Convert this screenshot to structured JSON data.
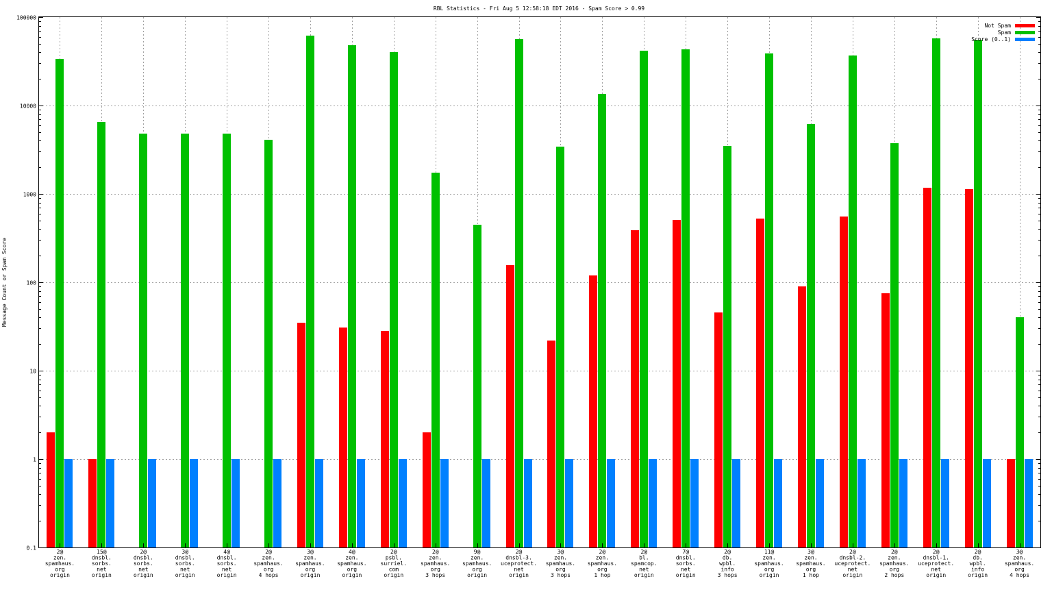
{
  "chart_data": {
    "type": "bar",
    "title": "RBL Statistics - Fri Aug  5 12:58:18 EDT 2016 - Spam Score > 0.99",
    "ylabel": "Message Count or Spam Score",
    "xlabel": "",
    "yscale": "log",
    "ylim": [
      0.1,
      100000
    ],
    "yticks": [
      "0.1",
      "1",
      "10",
      "100",
      "1000",
      "10000",
      "100000"
    ],
    "grid": true,
    "legend_position": "top-right",
    "categories": [
      [
        "2@",
        "zen.",
        "spamhaus.",
        "org",
        "origin"
      ],
      [
        "15@",
        "dnsbl.",
        "sorbs.",
        "net",
        "origin"
      ],
      [
        "2@",
        "dnsbl.",
        "sorbs.",
        "net",
        "origin"
      ],
      [
        "3@",
        "dnsbl.",
        "sorbs.",
        "net",
        "origin"
      ],
      [
        "4@",
        "dnsbl.",
        "sorbs.",
        "net",
        "origin"
      ],
      [
        "2@",
        "zen.",
        "spamhaus.",
        "org",
        "4 hops"
      ],
      [
        "3@",
        "zen.",
        "spamhaus.",
        "org",
        "origin"
      ],
      [
        "4@",
        "zen.",
        "spamhaus.",
        "org",
        "origin"
      ],
      [
        "2@",
        "psbl.",
        "surriel.",
        "com",
        "origin"
      ],
      [
        "2@",
        "zen.",
        "spamhaus.",
        "org",
        "3 hops"
      ],
      [
        "9@",
        "zen.",
        "spamhaus.",
        "org",
        "origin"
      ],
      [
        "2@",
        "dnsbl-3.",
        "uceprotect.",
        "net",
        "origin"
      ],
      [
        "3@",
        "zen.",
        "spamhaus.",
        "org",
        "3 hops"
      ],
      [
        "2@",
        "zen.",
        "spamhaus.",
        "org",
        "1 hop"
      ],
      [
        "2@",
        "bl.",
        "spamcop.",
        "net",
        "origin"
      ],
      [
        "7@",
        "dnsbl.",
        "sorbs.",
        "net",
        "origin"
      ],
      [
        "2@",
        "db.",
        "wpbl.",
        "info",
        "3 hops"
      ],
      [
        "11@",
        "zen.",
        "spamhaus.",
        "org",
        "origin"
      ],
      [
        "3@",
        "zen.",
        "spamhaus.",
        "org",
        "1 hop"
      ],
      [
        "2@",
        "dnsbl-2.",
        "uceprotect.",
        "net",
        "origin"
      ],
      [
        "2@",
        "zen.",
        "spamhaus.",
        "org",
        "2 hops"
      ],
      [
        "2@",
        "dnsbl-1.",
        "uceprotect.",
        "net",
        "origin"
      ],
      [
        "2@",
        "db.",
        "wpbl.",
        "info",
        "origin"
      ],
      [
        "3@",
        "zen.",
        "spamhaus.",
        "org",
        "4 hops"
      ]
    ],
    "series": [
      {
        "name": "Not Spam",
        "color": "#ff0000",
        "values": [
          2,
          1,
          null,
          null,
          null,
          null,
          35,
          31,
          28,
          2,
          null,
          155,
          22,
          120,
          390,
          510,
          46,
          530,
          90,
          550,
          75,
          1180,
          1130,
          1
        ]
      },
      {
        "name": "Spam",
        "color": "#00c000",
        "values": [
          33500,
          6500,
          4800,
          4800,
          4800,
          4100,
          62000,
          48000,
          40000,
          1750,
          450,
          56000,
          3400,
          13500,
          42000,
          43000,
          3500,
          38500,
          6200,
          37000,
          3750,
          58000,
          55000,
          40
        ]
      },
      {
        "name": "Score (0..1)",
        "color": "#0080ff",
        "values": [
          1,
          1,
          1,
          1,
          1,
          1,
          1,
          1,
          1,
          1,
          1,
          1,
          1,
          1,
          1,
          1,
          1,
          1,
          1,
          1,
          1,
          1,
          1,
          1
        ]
      }
    ]
  }
}
